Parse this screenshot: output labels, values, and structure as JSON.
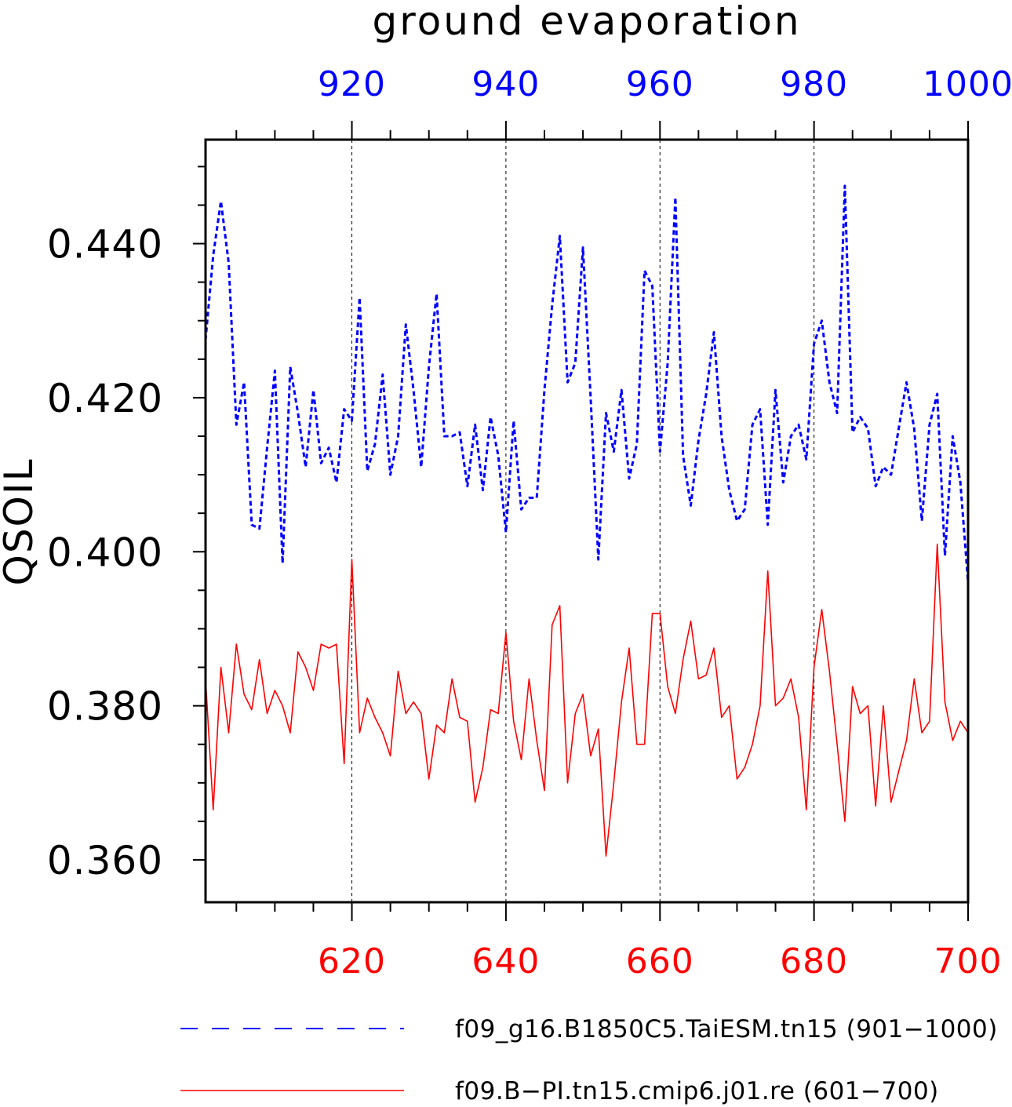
{
  "chart_data": {
    "type": "line",
    "title": "ground evaporation",
    "ylabel": "QSOIL",
    "ylim": [
      0.3545,
      0.4535
    ],
    "y_ticks": [
      0.36,
      0.38,
      0.4,
      0.42,
      0.44
    ],
    "y_tick_labels": [
      "0.360",
      "0.380",
      "0.400",
      "0.420",
      "0.440"
    ],
    "grid": "vertical dashed lines at major x ticks",
    "legend_position": "bottom",
    "top_axis": {
      "range": [
        901,
        1000
      ],
      "ticks": [
        920,
        940,
        960,
        980,
        1000
      ],
      "tick_labels": [
        "920",
        "940",
        "960",
        "980",
        "1000"
      ],
      "color": "#0000ff"
    },
    "bottom_axis": {
      "range": [
        601,
        700
      ],
      "ticks": [
        620,
        640,
        660,
        680,
        700
      ],
      "tick_labels": [
        "620",
        "640",
        "660",
        "680",
        "700"
      ],
      "color": "#ff0000"
    },
    "series": [
      {
        "name": "f09_g16.B1850C5.TaiESM.tn15 (901−1000)",
        "color": "#0000ff",
        "style": "dashed",
        "axis": "top",
        "x_start": 901,
        "values": [
          0.4275,
          0.4385,
          0.4455,
          0.4375,
          0.4165,
          0.422,
          0.4035,
          0.403,
          0.4135,
          0.4235,
          0.3985,
          0.424,
          0.418,
          0.411,
          0.421,
          0.4115,
          0.4135,
          0.409,
          0.4185,
          0.417,
          0.433,
          0.4105,
          0.414,
          0.423,
          0.41,
          0.415,
          0.4295,
          0.421,
          0.411,
          0.424,
          0.4335,
          0.415,
          0.415,
          0.4155,
          0.4085,
          0.4165,
          0.408,
          0.4175,
          0.4125,
          0.4025,
          0.417,
          0.4055,
          0.407,
          0.407,
          0.421,
          0.432,
          0.441,
          0.422,
          0.4245,
          0.4395,
          0.42,
          0.399,
          0.418,
          0.413,
          0.421,
          0.4095,
          0.414,
          0.4365,
          0.4345,
          0.413,
          0.4245,
          0.446,
          0.4125,
          0.406,
          0.4145,
          0.4205,
          0.4285,
          0.415,
          0.408,
          0.404,
          0.4055,
          0.4165,
          0.4185,
          0.4035,
          0.421,
          0.409,
          0.415,
          0.4165,
          0.412,
          0.427,
          0.43,
          0.422,
          0.418,
          0.4475,
          0.4155,
          0.4175,
          0.416,
          0.4085,
          0.411,
          0.41,
          0.416,
          0.422,
          0.416,
          0.404,
          0.4165,
          0.4205,
          0.3995,
          0.415,
          0.409,
          0.396
        ]
      },
      {
        "name": "f09.B−PI.tn15.cmip6.j01.re (601−700)",
        "color": "#ff0000",
        "style": "solid",
        "axis": "bottom",
        "x_start": 601,
        "values": [
          0.3835,
          0.3665,
          0.385,
          0.3765,
          0.388,
          0.3815,
          0.3795,
          0.386,
          0.379,
          0.382,
          0.38,
          0.3765,
          0.387,
          0.385,
          0.382,
          0.388,
          0.3875,
          0.388,
          0.3725,
          0.399,
          0.3765,
          0.381,
          0.3785,
          0.3765,
          0.3735,
          0.3845,
          0.379,
          0.3805,
          0.379,
          0.3705,
          0.3775,
          0.3765,
          0.3835,
          0.3785,
          0.378,
          0.3675,
          0.372,
          0.3795,
          0.379,
          0.3895,
          0.378,
          0.373,
          0.3835,
          0.3755,
          0.369,
          0.3905,
          0.393,
          0.37,
          0.379,
          0.3815,
          0.3735,
          0.377,
          0.3605,
          0.37,
          0.3805,
          0.3875,
          0.375,
          0.375,
          0.392,
          0.392,
          0.3825,
          0.379,
          0.386,
          0.391,
          0.3835,
          0.384,
          0.3875,
          0.3785,
          0.38,
          0.3705,
          0.372,
          0.375,
          0.38,
          0.3975,
          0.38,
          0.381,
          0.3835,
          0.3785,
          0.3665,
          0.385,
          0.3925,
          0.3845,
          0.375,
          0.365,
          0.3825,
          0.379,
          0.38,
          0.367,
          0.38,
          0.3675,
          0.3715,
          0.3755,
          0.3835,
          0.3765,
          0.378,
          0.401,
          0.3805,
          0.3755,
          0.378,
          0.3765
        ]
      }
    ]
  }
}
